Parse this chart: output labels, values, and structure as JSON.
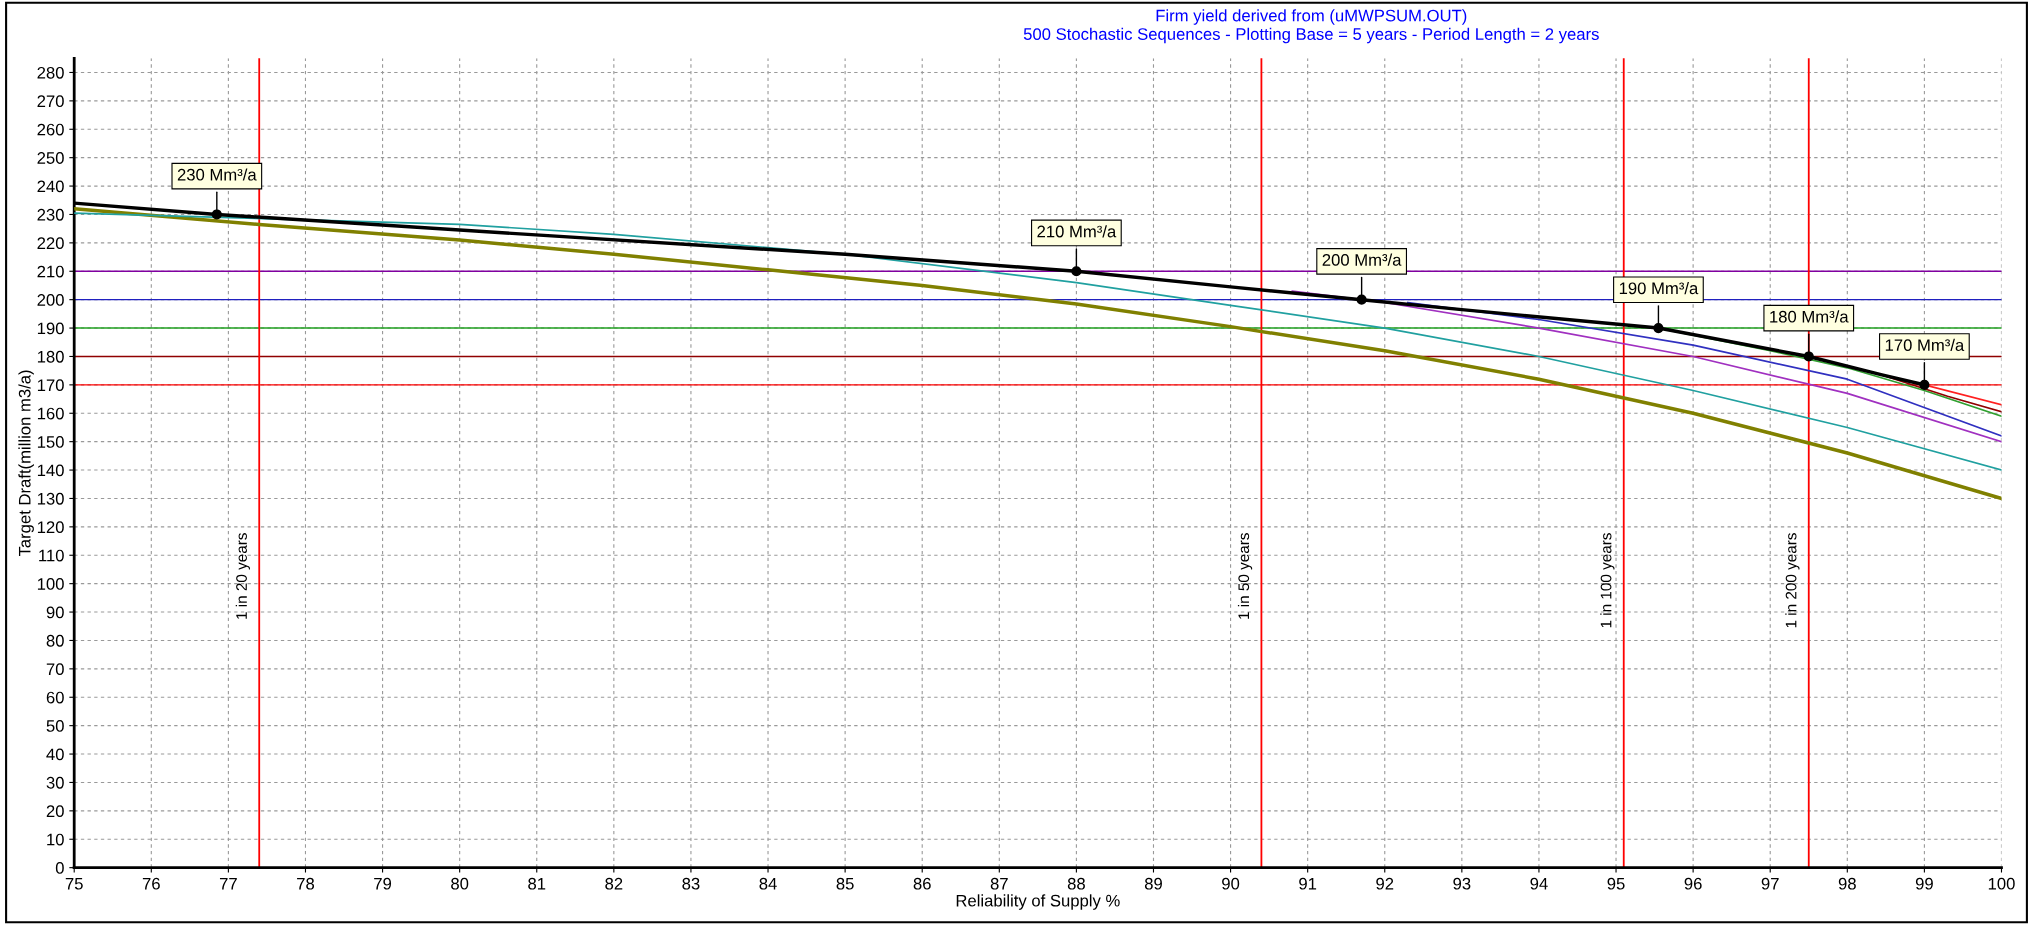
{
  "chart_data": {
    "type": "line",
    "title": "Firm yield derived from (uMWPSUM.OUT)",
    "subtitle": "500 Stochastic Sequences - Plotting Base = 5 years - Period Length = 2 years",
    "xlabel": "Reliability of Supply %",
    "ylabel": "Target Draft(million m3/a)",
    "xlim": [
      75,
      100
    ],
    "ylim": [
      0,
      285
    ],
    "xticks": [
      75,
      76,
      77,
      78,
      79,
      80,
      81,
      82,
      83,
      84,
      85,
      86,
      87,
      88,
      89,
      90,
      91,
      92,
      93,
      94,
      95,
      96,
      97,
      98,
      99,
      100
    ],
    "yticks": [
      0,
      10,
      20,
      30,
      40,
      50,
      60,
      70,
      80,
      90,
      100,
      110,
      120,
      130,
      140,
      150,
      160,
      170,
      180,
      190,
      200,
      210,
      220,
      230,
      240,
      250,
      260,
      270,
      280
    ],
    "grid": true,
    "line_style": "solid",
    "series": [
      {
        "color": "#808000",
        "x": [
          75,
          77.4,
          80,
          82,
          84,
          86,
          88,
          90,
          92,
          94,
          96,
          98,
          100
        ],
        "values": [
          232,
          226.5,
          221,
          216,
          210.5,
          205,
          198.5,
          190.5,
          182,
          172,
          160,
          146,
          130
        ]
      },
      {
        "color": "#20a0a0",
        "x": [
          75,
          80,
          82,
          85,
          88,
          90,
          92,
          94,
          96,
          98,
          100
        ],
        "values": [
          230.5,
          226.5,
          223,
          216,
          206,
          198,
          190,
          180,
          168,
          155,
          140
        ]
      },
      {
        "color": "#a030c0",
        "x": [
          90.8,
          92,
          94,
          96,
          98,
          100
        ],
        "values": [
          203,
          199,
          190,
          180,
          167,
          150
        ]
      },
      {
        "color": "#3030c0",
        "x": [
          92.3,
          94,
          96,
          98,
          100
        ],
        "values": [
          199,
          193,
          184,
          172,
          152
        ]
      },
      {
        "color": "#30a030",
        "x": [
          95.55,
          96,
          97,
          98,
          99,
          100
        ],
        "values": [
          190,
          187.5,
          182,
          176,
          168,
          159
        ]
      },
      {
        "color": "#900000",
        "x": [
          98.45,
          99.3,
          100
        ],
        "values": [
          173.5,
          166,
          160.5
        ]
      },
      {
        "color": "#ff2020",
        "x": [
          99,
          100
        ],
        "values": [
          170,
          163
        ]
      },
      {
        "color": "#000000",
        "x": [
          75,
          76.85,
          80,
          85,
          88,
          90,
          91.7,
          93,
          95.55,
          97.5,
          98.45,
          99
        ],
        "values": [
          234,
          230,
          224.5,
          216,
          210,
          204.5,
          200,
          196.5,
          190,
          180,
          173.5,
          170
        ]
      },
      {
        "type": "scatter",
        "marker": "circle",
        "color": "#000000",
        "x": [
          76.85,
          88,
          91.7,
          95.55,
          97.5,
          99
        ],
        "values": [
          230,
          210,
          200,
          190,
          180,
          170
        ]
      }
    ],
    "ref_lines": [
      {
        "axis": "y",
        "value": 210,
        "color": "#8000a0"
      },
      {
        "axis": "y",
        "value": 200,
        "color": "#2020c0"
      },
      {
        "axis": "y",
        "value": 190,
        "color": "#20a020"
      },
      {
        "axis": "y",
        "value": 180,
        "color": "#900000"
      },
      {
        "axis": "y",
        "value": 170,
        "color": "#ff0000"
      },
      {
        "axis": "x",
        "value": 77.4,
        "label": "1 in 20 years",
        "color": "#ff0000"
      },
      {
        "axis": "x",
        "value": 90.4,
        "label": "1 in 50 years",
        "color": "#ff0000"
      },
      {
        "axis": "x",
        "value": 95.1,
        "label": "1 in 100 years",
        "color": "#ff0000"
      },
      {
        "axis": "x",
        "value": 97.5,
        "label": "1 in 200 years",
        "color": "#ff0000"
      }
    ],
    "annotations": [
      {
        "text": "230 Mm³/a",
        "x": 76.85,
        "y": 230
      },
      {
        "text": "210 Mm³/a",
        "x": 88,
        "y": 210
      },
      {
        "text": "200 Mm³/a",
        "x": 91.7,
        "y": 200
      },
      {
        "text": "190 Mm³/a",
        "x": 95.55,
        "y": 190
      },
      {
        "text": "180 Mm³/a",
        "x": 97.5,
        "y": 180
      },
      {
        "text": "170 Mm³/a",
        "x": 99,
        "y": 170
      }
    ]
  }
}
